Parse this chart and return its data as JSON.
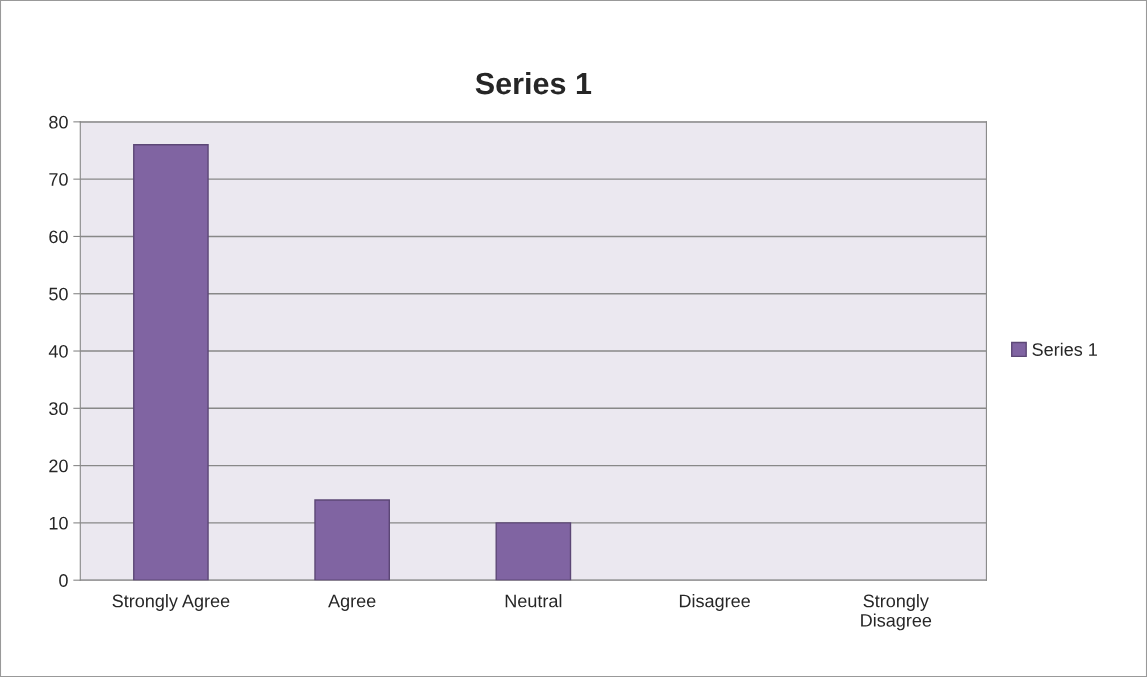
{
  "chart_data": {
    "type": "bar",
    "title": "Series 1",
    "categories": [
      "Strongly Agree",
      "Agree",
      "Neutral",
      "Disagree",
      "Strongly Disagree"
    ],
    "series": [
      {
        "name": "Series 1",
        "color": "#8064a2",
        "values": [
          76,
          14,
          10,
          0,
          0
        ]
      }
    ],
    "ylim": [
      0,
      80
    ],
    "yticks": [
      0,
      10,
      20,
      30,
      40,
      50,
      60,
      70,
      80
    ],
    "grid": "y",
    "legend": "right"
  }
}
